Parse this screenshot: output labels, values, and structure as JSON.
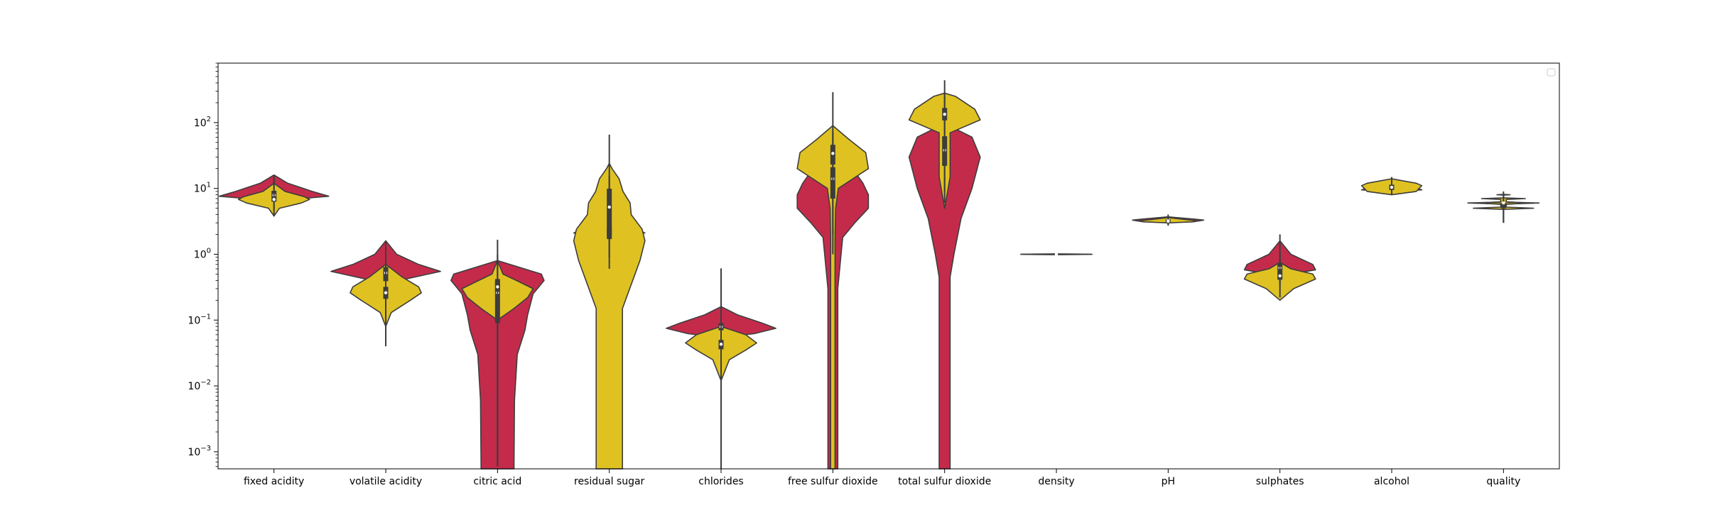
{
  "chart_data": {
    "type": "violin",
    "scale": "log",
    "ylim": [
      0.00055,
      800
    ],
    "yticks": [
      {
        "value": 0.001,
        "base": "10",
        "exp": "−3"
      },
      {
        "value": 0.01,
        "base": "10",
        "exp": "−2"
      },
      {
        "value": 0.1,
        "base": "10",
        "exp": "−1"
      },
      {
        "value": 1,
        "base": "10",
        "exp": "0"
      },
      {
        "value": 10,
        "base": "10",
        "exp": "1"
      },
      {
        "value": 100,
        "base": "10",
        "exp": "2"
      }
    ],
    "legend": {
      "position": "top-right",
      "entries": []
    },
    "colors": {
      "red": "#c42b4b",
      "yellow": "#dfc221",
      "box": "#3d3d3d",
      "median": "#ffffff",
      "outline": "#3d3d3d"
    },
    "categories": [
      "fixed acidity",
      "volatile acidity",
      "citric acid",
      "residual sugar",
      "chlorides",
      "free sulfur dioxide",
      "total sulfur dioxide",
      "density",
      "pH",
      "sulphates",
      "alcohol",
      "quality"
    ],
    "series": [
      {
        "color": "red",
        "violins": [
          {
            "category": "fixed acidity",
            "profile": [
              [
                3.8,
                0
              ],
              [
                5.5,
                0.1
              ],
              [
                7,
                0.5
              ],
              [
                7.6,
                1
              ],
              [
                9,
                0.7
              ],
              [
                12,
                0.25
              ],
              [
                16,
                0
              ]
            ],
            "q1": 7.1,
            "median": 7.9,
            "q3": 9.2,
            "min": 4.6,
            "max": 15.9
          },
          {
            "category": "volatile acidity",
            "profile": [
              [
                0.2,
                0
              ],
              [
                0.4,
                0.25
              ],
              [
                0.55,
                1
              ],
              [
                0.7,
                0.6
              ],
              [
                1.0,
                0.2
              ],
              [
                1.6,
                0
              ]
            ],
            "q1": 0.39,
            "median": 0.52,
            "q3": 0.64,
            "min": 0.12,
            "max": 1.58
          },
          {
            "category": "citric acid",
            "profile": [
              [
                0.00055,
                0.3
              ],
              [
                0.006,
                0.31
              ],
              [
                0.03,
                0.36
              ],
              [
                0.07,
                0.5
              ],
              [
                0.12,
                0.55
              ],
              [
                0.25,
                0.65
              ],
              [
                0.4,
                0.85
              ],
              [
                0.5,
                0.8
              ],
              [
                0.8,
                0
              ],
              [
                1.0,
                0
              ]
            ],
            "q1": 0.09,
            "median": 0.26,
            "q3": 0.42,
            "min": 0.0006,
            "max": 1.0
          },
          {
            "category": "residual sugar",
            "profile": [
              [
                1.8,
                0
              ],
              [
                2.0,
                0.4
              ],
              [
                2.1,
                0.65
              ],
              [
                2.2,
                0.6
              ],
              [
                2.4,
                0
              ]
            ],
            "q1": 1.9,
            "median": 2.2,
            "q3": 2.6,
            "min": 0.9,
            "max": 15.5
          },
          {
            "category": "chlorides",
            "profile": [
              [
                0.055,
                0
              ],
              [
                0.062,
                0.6
              ],
              [
                0.075,
                1
              ],
              [
                0.09,
                0.75
              ],
              [
                0.12,
                0.3
              ],
              [
                0.16,
                0
              ]
            ],
            "q1": 0.07,
            "median": 0.079,
            "q3": 0.09,
            "min": 0.012,
            "max": 0.61
          },
          {
            "category": "free sulfur dioxide",
            "profile": [
              [
                0.00055,
                0.09
              ],
              [
                0.3,
                0.09
              ],
              [
                1,
                0.15
              ],
              [
                1.8,
                0.18
              ],
              [
                3,
                0.4
              ],
              [
                5,
                0.65
              ],
              [
                8,
                0.65
              ],
              [
                12,
                0.55
              ],
              [
                18,
                0.4
              ],
              [
                28,
                0
              ],
              [
                30,
                0
              ]
            ],
            "q1": 7,
            "median": 14,
            "q3": 21,
            "min": 1,
            "max": 72
          },
          {
            "category": "total sulfur dioxide",
            "profile": [
              [
                0.00055,
                0.1
              ],
              [
                0.45,
                0.1
              ],
              [
                1,
                0.17
              ],
              [
                3.5,
                0.3
              ],
              [
                10,
                0.5
              ],
              [
                30,
                0.65
              ],
              [
                60,
                0.5
              ],
              [
                80,
                0.2
              ],
              [
                100,
                0
              ]
            ],
            "q1": 22,
            "median": 38,
            "q3": 62,
            "min": 6,
            "max": 289
          },
          {
            "category": "density",
            "profile": [
              [
                0.99,
                0
              ],
              [
                0.995,
                0.5
              ],
              [
                1.0,
                0.65
              ],
              [
                1.005,
                0.5
              ],
              [
                1.01,
                0
              ]
            ],
            "q1": 0.9956,
            "median": 0.9968,
            "q3": 0.9978,
            "min": 0.99,
            "max": 1.004
          },
          {
            "category": "pH",
            "profile": [
              [
                3.0,
                0
              ],
              [
                3.2,
                0.55
              ],
              [
                3.3,
                0.65
              ],
              [
                3.4,
                0.5
              ],
              [
                3.7,
                0
              ]
            ],
            "q1": 3.21,
            "median": 3.31,
            "q3": 3.4,
            "min": 2.74,
            "max": 4.01
          },
          {
            "category": "sulphates",
            "profile": [
              [
                0.4,
                0
              ],
              [
                0.5,
                0.2
              ],
              [
                0.58,
                0.65
              ],
              [
                0.7,
                0.6
              ],
              [
                1.0,
                0.2
              ],
              [
                1.6,
                0
              ]
            ],
            "q1": 0.55,
            "median": 0.62,
            "q3": 0.73,
            "min": 0.33,
            "max": 2.0
          },
          {
            "category": "alcohol",
            "profile": [
              [
                9,
                0
              ],
              [
                9.5,
                0.55
              ],
              [
                10.2,
                0.45
              ],
              [
                11,
                0.3
              ],
              [
                13,
                0
              ]
            ],
            "q1": 9.5,
            "median": 10.2,
            "q3": 11.1,
            "min": 8.4,
            "max": 14.9
          },
          {
            "category": "quality",
            "profile": [
              [
                5.7,
                0
              ],
              [
                6,
                0.45
              ],
              [
                6.3,
                0
              ]
            ],
            "q1": 5,
            "median": 6,
            "q3": 6,
            "min": 3,
            "max": 8
          }
        ]
      },
      {
        "color": "yellow",
        "violins": [
          {
            "category": "fixed acidity",
            "profile": [
              [
                3.8,
                0
              ],
              [
                5.0,
                0.1
              ],
              [
                6,
                0.5
              ],
              [
                6.8,
                0.65
              ],
              [
                7.5,
                0.55
              ],
              [
                9,
                0.2
              ],
              [
                12,
                0
              ]
            ],
            "q1": 6.3,
            "median": 6.8,
            "q3": 7.3,
            "min": 3.8,
            "max": 14.2
          },
          {
            "category": "volatile acidity",
            "profile": [
              [
                0.08,
                0
              ],
              [
                0.13,
                0.1
              ],
              [
                0.2,
                0.45
              ],
              [
                0.26,
                0.65
              ],
              [
                0.32,
                0.6
              ],
              [
                0.45,
                0.3
              ],
              [
                0.7,
                0
              ]
            ],
            "q1": 0.21,
            "median": 0.26,
            "q3": 0.32,
            "min": 0.04,
            "max": 1.1
          },
          {
            "category": "citric acid",
            "profile": [
              [
                0.1,
                0
              ],
              [
                0.15,
                0.3
              ],
              [
                0.22,
                0.55
              ],
              [
                0.3,
                0.65
              ],
              [
                0.38,
                0.4
              ],
              [
                0.5,
                0.1
              ],
              [
                0.8,
                0
              ]
            ],
            "q1": 0.27,
            "median": 0.32,
            "q3": 0.39,
            "min": 0.0006,
            "max": 1.66
          },
          {
            "category": "residual sugar",
            "profile": [
              [
                0.00055,
                0.24
              ],
              [
                0.15,
                0.24
              ],
              [
                0.8,
                0.56
              ],
              [
                1.6,
                0.65
              ],
              [
                2.4,
                0.6
              ],
              [
                4,
                0.4
              ],
              [
                6,
                0.38
              ],
              [
                9,
                0.25
              ],
              [
                14,
                0.18
              ],
              [
                20,
                0.05
              ],
              [
                24,
                0
              ]
            ],
            "q1": 1.7,
            "median": 5.2,
            "q3": 9.9,
            "min": 0.6,
            "max": 65.8
          },
          {
            "category": "chlorides",
            "profile": [
              [
                0.012,
                0
              ],
              [
                0.025,
                0.15
              ],
              [
                0.035,
                0.45
              ],
              [
                0.045,
                0.65
              ],
              [
                0.06,
                0.45
              ],
              [
                0.08,
                0
              ]
            ],
            "q1": 0.036,
            "median": 0.043,
            "q3": 0.05,
            "min": 0.00055,
            "max": 0.35
          },
          {
            "category": "free sulfur dioxide",
            "profile": [
              [
                0.00055,
                0.04
              ],
              [
                1.8,
                0.04
              ],
              [
                5,
                0.05
              ],
              [
                10,
                0.1
              ],
              [
                20,
                0.65
              ],
              [
                35,
                0.6
              ],
              [
                55,
                0.3
              ],
              [
                90,
                0
              ]
            ],
            "q1": 23,
            "median": 34,
            "q3": 46,
            "min": 2,
            "max": 289
          },
          {
            "category": "total sulfur dioxide",
            "profile": [
              [
                5,
                0
              ],
              [
                15,
                0.1
              ],
              [
                70,
                0.1
              ],
              [
                110,
                0.65
              ],
              [
                160,
                0.55
              ],
              [
                250,
                0.2
              ],
              [
                280,
                0
              ]
            ],
            "q1": 108,
            "median": 134,
            "q3": 167,
            "min": 9,
            "max": 440
          },
          {
            "category": "density",
            "profile": [
              [
                0.99,
                0
              ],
              [
                0.995,
                0.5
              ],
              [
                1.0,
                0.65
              ],
              [
                1.005,
                0.5
              ],
              [
                1.01,
                0
              ]
            ],
            "q1": 0.9917,
            "median": 0.9937,
            "q3": 0.9961,
            "min": 0.987,
            "max": 1.039
          },
          {
            "category": "pH",
            "profile": [
              [
                3.0,
                0
              ],
              [
                3.1,
                0.45
              ],
              [
                3.2,
                0.55
              ],
              [
                3.3,
                0.4
              ],
              [
                3.6,
                0
              ]
            ],
            "q1": 3.09,
            "median": 3.18,
            "q3": 3.28,
            "min": 2.72,
            "max": 3.82
          },
          {
            "category": "sulphates",
            "profile": [
              [
                0.2,
                0
              ],
              [
                0.3,
                0.25
              ],
              [
                0.42,
                0.65
              ],
              [
                0.5,
                0.6
              ],
              [
                0.6,
                0.2
              ],
              [
                0.75,
                0
              ]
            ],
            "q1": 0.41,
            "median": 0.47,
            "q3": 0.55,
            "min": 0.22,
            "max": 1.08
          },
          {
            "category": "alcohol",
            "profile": [
              [
                8,
                0
              ],
              [
                9,
                0.45
              ],
              [
                10,
                0.5
              ],
              [
                11,
                0.55
              ],
              [
                12,
                0.45
              ],
              [
                14,
                0
              ]
            ],
            "q1": 9.5,
            "median": 10.4,
            "q3": 11.4,
            "min": 8,
            "max": 14.2
          },
          {
            "category": "quality",
            "profile": [
              [
                4.8,
                0
              ],
              [
                5,
                0.55
              ],
              [
                5.2,
                0.05
              ],
              [
                5.8,
                0.05
              ],
              [
                6,
                0.65
              ],
              [
                6.2,
                0.05
              ],
              [
                6.8,
                0.05
              ],
              [
                7,
                0.4
              ],
              [
                7.2,
                0
              ],
              [
                7.9,
                0
              ],
              [
                8,
                0.12
              ],
              [
                8.1,
                0
              ]
            ],
            "q1": 5,
            "median": 6,
            "q3": 6,
            "min": 3,
            "max": 9
          }
        ]
      }
    ]
  }
}
